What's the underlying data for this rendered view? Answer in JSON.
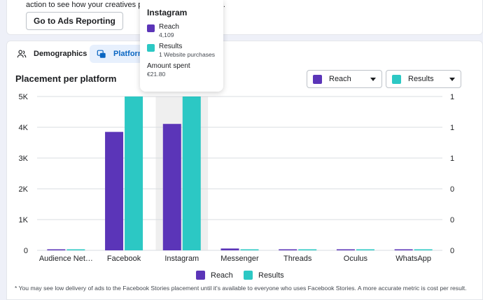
{
  "top_card": {
    "description": "action to see how your creatives perform across platforms.",
    "button_label": "Go to Ads Reporting"
  },
  "tabs": [
    {
      "label": "Demographics",
      "icon": "people-icon",
      "active": false
    },
    {
      "label": "Platform",
      "icon": "platform-icon",
      "active": true
    }
  ],
  "section": {
    "title": "Placement per platform"
  },
  "dropdowns": {
    "reach": {
      "label": "Reach",
      "color": "#5b35b8"
    },
    "results": {
      "label": "Results",
      "color": "#2cc8c4"
    }
  },
  "legend": [
    {
      "label": "Reach",
      "color": "#5b35b8"
    },
    {
      "label": "Results",
      "color": "#2cc8c4"
    }
  ],
  "tooltip": {
    "title": "Instagram",
    "reach_label": "Reach",
    "reach_value": "4,109",
    "results_label": "Results",
    "results_value": "1 Website purchases",
    "amount_label": "Amount spent",
    "amount_value": "€21.80"
  },
  "footnote": "* You may see low delivery of ads to the Facebook Stories placement until it's available to everyone who uses Facebook Stories. A more accurate metric is cost per result.",
  "chart_data": {
    "type": "bar",
    "categories": [
      "Audience Net…",
      "Facebook",
      "Instagram",
      "Messenger",
      "Threads",
      "Oculus",
      "WhatsApp"
    ],
    "series": [
      {
        "name": "Reach",
        "axis": "left",
        "color": "#5b35b8",
        "values": [
          20,
          3850,
          4109,
          60,
          10,
          10,
          10
        ]
      },
      {
        "name": "Results",
        "axis": "right",
        "color": "#2cc8c4",
        "values": [
          0,
          1,
          1,
          0,
          0,
          0,
          0
        ]
      }
    ],
    "left_axis": {
      "ticks": [
        "0",
        "1K",
        "2K",
        "3K",
        "4K",
        "5K"
      ],
      "ylim": [
        0,
        5000
      ]
    },
    "right_axis": {
      "ticks": [
        "0",
        "0",
        "0",
        "1",
        "1",
        "1"
      ],
      "ylim": [
        0,
        1
      ]
    },
    "highlighted_category": "Instagram",
    "grid": true
  }
}
